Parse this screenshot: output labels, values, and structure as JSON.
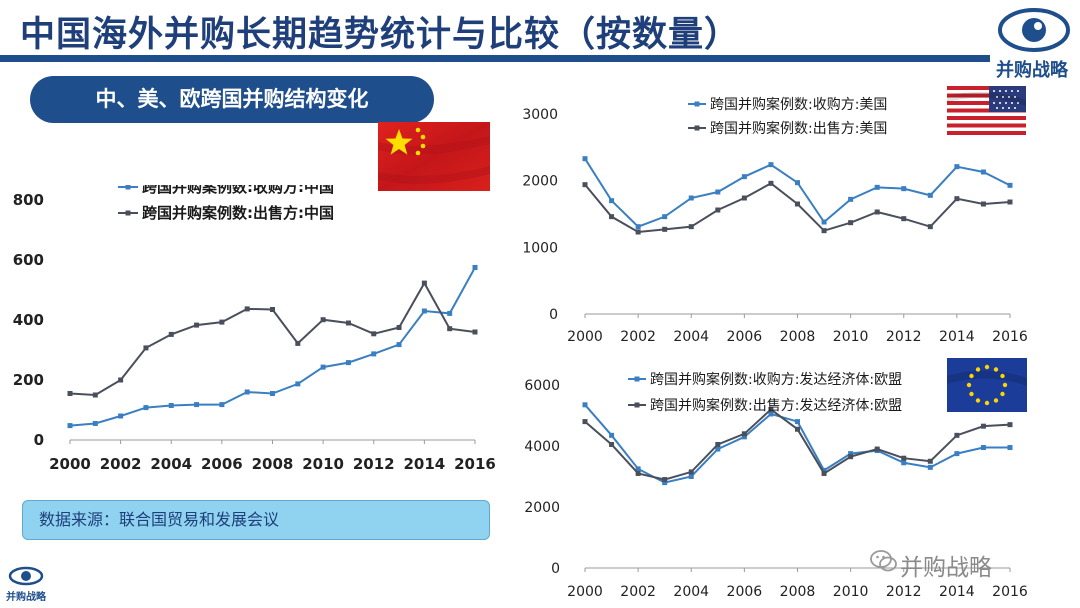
{
  "header": {
    "title": "中国海外并购长期趋势统计与比较（按数量）",
    "logo_text": "并购战略",
    "section_label": "中、美、欧跨国并购结构变化"
  },
  "source_note": "数据来源：联合国贸易和发展会议",
  "watermark": "并购战略",
  "colors": {
    "buyer": "#3a7fc1",
    "seller": "#4a4f5c",
    "brand": "#1f4e8c"
  },
  "chart_data": [
    {
      "type": "line",
      "region": "中国",
      "x": [
        2000,
        2001,
        2002,
        2003,
        2004,
        2005,
        2006,
        2007,
        2008,
        2009,
        2010,
        2011,
        2012,
        2013,
        2014,
        2015,
        2016
      ],
      "x_ticks": [
        "2000",
        "2002",
        "2004",
        "2006",
        "2008",
        "2010",
        "2012",
        "2014",
        "2016"
      ],
      "y_ticks": [
        "0",
        "200",
        "400",
        "600",
        "800"
      ],
      "ylim": [
        0,
        800
      ],
      "series": [
        {
          "name": "跨国并购案例数:收购方:中国",
          "values": [
            48,
            55,
            80,
            108,
            115,
            118,
            118,
            160,
            155,
            187,
            243,
            258,
            287,
            318,
            430,
            422,
            575
          ]
        },
        {
          "name": "跨国并购案例数:出售方:中国",
          "values": [
            155,
            150,
            200,
            307,
            352,
            383,
            393,
            437,
            435,
            322,
            401,
            390,
            354,
            375,
            523,
            371,
            360
          ]
        }
      ]
    },
    {
      "type": "line",
      "region": "美国",
      "x": [
        2000,
        2001,
        2002,
        2003,
        2004,
        2005,
        2006,
        2007,
        2008,
        2009,
        2010,
        2011,
        2012,
        2013,
        2014,
        2015,
        2016
      ],
      "x_ticks": [
        "2000",
        "2002",
        "2004",
        "2006",
        "2008",
        "2010",
        "2012",
        "2014",
        "2016"
      ],
      "y_ticks": [
        "0",
        "1000",
        "2000",
        "3000"
      ],
      "ylim": [
        0,
        3000
      ],
      "series": [
        {
          "name": "跨国并购案例数:收购方:美国",
          "values": [
            2330,
            1700,
            1310,
            1460,
            1740,
            1830,
            2060,
            2240,
            1970,
            1380,
            1720,
            1900,
            1880,
            1780,
            2210,
            2130,
            1930
          ]
        },
        {
          "name": "跨国并购案例数:出售方:美国",
          "values": [
            1940,
            1460,
            1230,
            1270,
            1310,
            1560,
            1740,
            1960,
            1650,
            1250,
            1370,
            1530,
            1430,
            1310,
            1730,
            1650,
            1680
          ]
        }
      ]
    },
    {
      "type": "line",
      "region": "欧盟",
      "x": [
        2000,
        2001,
        2002,
        2003,
        2004,
        2005,
        2006,
        2007,
        2008,
        2009,
        2010,
        2011,
        2012,
        2013,
        2014,
        2015,
        2016
      ],
      "x_ticks": [
        "2000",
        "2002",
        "2004",
        "2006",
        "2008",
        "2010",
        "2012",
        "2014",
        "2016"
      ],
      "y_ticks": [
        "0",
        "2000",
        "4000",
        "6000"
      ],
      "ylim": [
        0,
        6000
      ],
      "series": [
        {
          "name": "跨国并购案例数:收购方:发达经济体:欧盟",
          "values": [
            5350,
            4350,
            3250,
            2800,
            3000,
            3900,
            4300,
            5050,
            4800,
            3200,
            3750,
            3850,
            3450,
            3300,
            3750,
            3950,
            3950
          ]
        },
        {
          "name": "跨国并购案例数:出售方:发达经济体:欧盟",
          "values": [
            4800,
            4050,
            3100,
            2900,
            3150,
            4050,
            4400,
            5200,
            4550,
            3100,
            3650,
            3900,
            3600,
            3500,
            4350,
            4650,
            4700
          ]
        }
      ]
    }
  ]
}
